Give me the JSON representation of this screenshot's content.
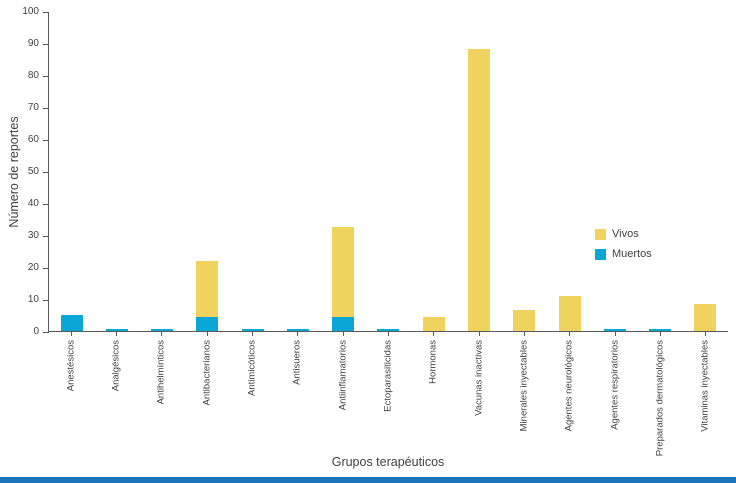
{
  "chart_data": {
    "type": "bar",
    "stacked": true,
    "title": "",
    "xlabel": "Grupos terapéuticos",
    "ylabel": "Número de reportes",
    "ylim": [
      0,
      100
    ],
    "yticks": [
      0,
      10,
      20,
      30,
      40,
      50,
      60,
      70,
      80,
      90,
      100
    ],
    "grid": false,
    "categories": [
      "Anestésicos",
      "Analgésicos",
      "Antihelmínticos",
      "Antibacterianos",
      "Antimicóticos",
      "Antisueros",
      "Antiinflamatorios",
      "Ectoparasiticidas",
      "Hormonas",
      "Vacunas inactivas",
      "Minerales inyectables",
      "Agentes neurológicos",
      "Agentes respiratorios",
      "Preparados dermatológicos",
      "Vitaminas inyectables"
    ],
    "series": [
      {
        "name": "Vivos",
        "color": "#f0d35e",
        "values": [
          0,
          0,
          0,
          17.5,
          0,
          0,
          28,
          0,
          4.5,
          88,
          6.5,
          11,
          0,
          0,
          8.5
        ]
      },
      {
        "name": "Muertos",
        "color": "#0aa7d6",
        "values": [
          5,
          0.5,
          0.5,
          4.5,
          0.5,
          0.5,
          4.5,
          0.5,
          0,
          0,
          0,
          0,
          0.5,
          0.5,
          0
        ]
      }
    ],
    "legend": {
      "position": "right",
      "entries": [
        "Vivos",
        "Muertos"
      ]
    }
  },
  "footer": {
    "divider_color": "#1c75bc"
  }
}
